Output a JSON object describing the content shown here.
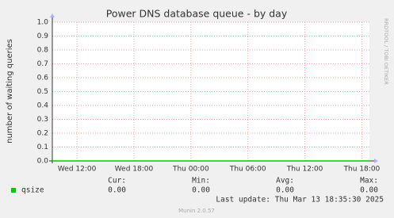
{
  "chart_data": {
    "type": "line",
    "title": "Power DNS database queue - by day",
    "ylabel": "number of waiting queries",
    "side_text": "RRDTOOL / TOBI OETIKER",
    "x": [
      9.4,
      42.8
    ],
    "xlim": [
      9.4,
      42.8
    ],
    "xticks": [
      {
        "value": 12,
        "label": "Wed 12:00"
      },
      {
        "value": 18,
        "label": "Wed 18:00"
      },
      {
        "value": 24,
        "label": "Thu 00:00"
      },
      {
        "value": 30,
        "label": "Thu 06:00"
      },
      {
        "value": 36,
        "label": "Thu 12:00"
      },
      {
        "value": 42,
        "label": "Thu 18:00"
      }
    ],
    "ylim": [
      0,
      1
    ],
    "yticks": [
      {
        "value": 0,
        "label": "0.0"
      },
      0.1,
      0.2,
      0.3,
      0.4,
      0.5,
      0.6,
      0.7,
      0.8,
      0.9,
      {
        "value": 1,
        "label": "1.0"
      }
    ],
    "grid": true,
    "series": [
      {
        "name": "qsize",
        "color": "#00cc00",
        "values": [
          0,
          0
        ]
      }
    ],
    "legend_stats": {
      "labels": [
        "Cur:",
        "Min:",
        "Avg:",
        "Max:"
      ],
      "values": [
        0,
        0,
        0,
        0
      ],
      "value_labels": [
        "0.00",
        "0.00",
        "0.00",
        "0.00"
      ]
    },
    "last_update": "Last update: Thu Mar 13 18:35:30 2025",
    "footer": "Munin 2.0.57"
  }
}
